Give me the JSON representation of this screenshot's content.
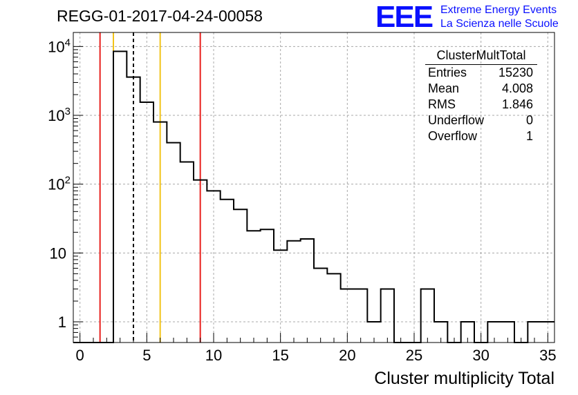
{
  "title": "REGG-01-2017-04-24-00058",
  "logo": {
    "mark": "EEE",
    "line1": "Extreme Energy Events",
    "line2": "La Scienza nelle Scuole"
  },
  "stats_box": {
    "name": "ClusterMultTotal",
    "rows": [
      {
        "label": "Entries",
        "value": "15230"
      },
      {
        "label": "Mean",
        "value": "4.008"
      },
      {
        "label": "RMS",
        "value": "1.846"
      },
      {
        "label": "Underflow",
        "value": "0"
      },
      {
        "label": "Overflow",
        "value": "1"
      }
    ]
  },
  "chart_data": {
    "type": "histogram",
    "title": "REGG-01-2017-04-24-00058",
    "xlabel": "Cluster multiplicity Total",
    "ylabel": "",
    "xlim": [
      -0.5,
      35.5
    ],
    "ylim": [
      0.5,
      16000
    ],
    "log_y": true,
    "grid": true,
    "bin_width": 1,
    "bin_centers": [
      0,
      1,
      2,
      3,
      4,
      5,
      6,
      7,
      8,
      9,
      10,
      11,
      12,
      13,
      14,
      15,
      16,
      17,
      18,
      19,
      20,
      21,
      22,
      23,
      24,
      25,
      26,
      27,
      28,
      29,
      30,
      31,
      32,
      33,
      34,
      35
    ],
    "counts": [
      0,
      0,
      0,
      8500,
      3600,
      1550,
      800,
      400,
      210,
      115,
      80,
      60,
      43,
      21,
      22,
      11,
      15,
      16,
      6,
      5,
      3,
      3,
      1,
      3,
      0,
      0,
      3,
      1,
      0,
      1,
      0,
      1,
      1,
      0,
      1,
      1
    ],
    "x_ticks": [
      "0",
      "5",
      "10",
      "15",
      "20",
      "25",
      "30",
      "35"
    ],
    "y_ticks": [
      "1",
      "10",
      "10^2",
      "10^3",
      "10^4"
    ],
    "vertical_lines": [
      {
        "x": 1.5,
        "color": "#e8201c",
        "style": "solid"
      },
      {
        "x": 2.5,
        "color": "#f2c318",
        "style": "solid"
      },
      {
        "x": 4.0,
        "color": "#000000",
        "style": "dashed"
      },
      {
        "x": 6.0,
        "color": "#f2c318",
        "style": "solid"
      },
      {
        "x": 9.0,
        "color": "#e8201c",
        "style": "solid"
      }
    ]
  }
}
